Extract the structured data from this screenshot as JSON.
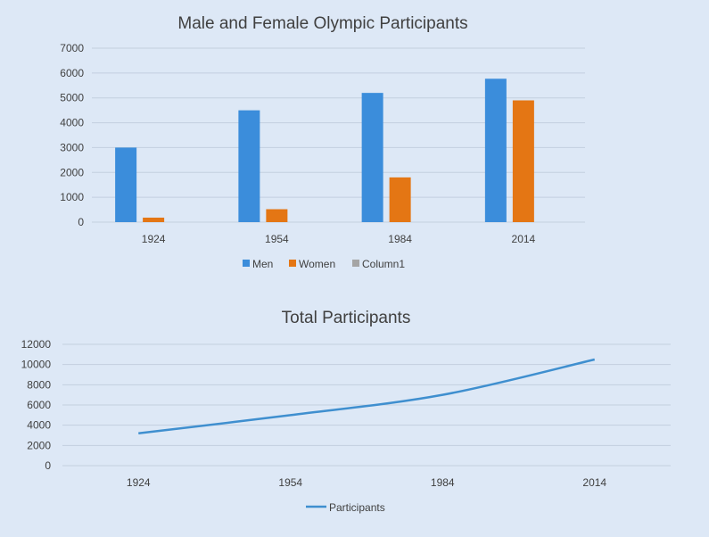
{
  "colors": {
    "background": "#dde8f6",
    "men": "#3b8ddb",
    "women": "#e47614",
    "column1": "#a5a5a5",
    "line": "#3f8fcf",
    "grid": "#c3cfdf",
    "text": "#404040"
  },
  "chart_data": [
    {
      "type": "bar",
      "title": "Male and Female Olympic Participants",
      "categories": [
        "1924",
        "1954",
        "1984",
        "2014"
      ],
      "series": [
        {
          "name": "Men",
          "values": [
            3000,
            4500,
            5200,
            5770
          ]
        },
        {
          "name": "Women",
          "values": [
            180,
            520,
            1800,
            4900
          ]
        },
        {
          "name": "Column1",
          "values": [
            0,
            0,
            0,
            0
          ]
        }
      ],
      "ylim": [
        0,
        7000
      ],
      "yticks": [
        "0",
        "1000",
        "2000",
        "3000",
        "4000",
        "5000",
        "6000",
        "7000"
      ],
      "grid": true,
      "legend": "bottom"
    },
    {
      "type": "line",
      "title": "Total Participants",
      "categories": [
        "1924",
        "1954",
        "1984",
        "2014"
      ],
      "series": [
        {
          "name": "Participants",
          "values": [
            3200,
            5000,
            7000,
            10500
          ]
        }
      ],
      "ylim": [
        0,
        12000
      ],
      "yticks": [
        "0",
        "2000",
        "4000",
        "6000",
        "8000",
        "10000",
        "12000"
      ],
      "grid": true,
      "legend": "bottom"
    }
  ]
}
